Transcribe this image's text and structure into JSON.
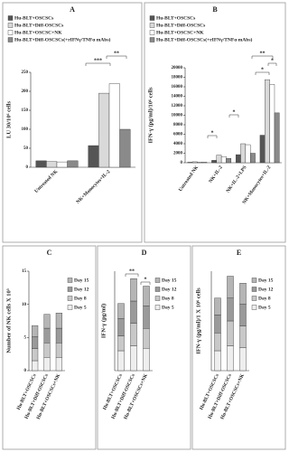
{
  "chart_data": [
    {
      "type": "bar",
      "label": "A",
      "y_label": "LU 30/10⁶ cells",
      "categories": [
        "Untreated NK",
        "NK+Monocytes+IL-2"
      ],
      "series": [
        {
          "name": "Hu-BLT+OSCSCs",
          "color": "#555555",
          "values": [
            17,
            57
          ]
        },
        {
          "name": "Hu-BLT+Diff-OSCSCs",
          "color": "#d9d9d9",
          "values": [
            15,
            195
          ]
        },
        {
          "name": "Hu-BLT+OSCSC+NK",
          "color": "#ffffff",
          "values": [
            14,
            220
          ]
        },
        {
          "name": "Hu-BLT+Diff-OSCSCs(+rIFNγ/TNFα mAbs)",
          "color": "#8a8a8a",
          "values": [
            17,
            100
          ]
        }
      ],
      "ylim": [
        0,
        250
      ],
      "yticks": [
        0,
        50,
        100,
        150,
        200,
        250
      ],
      "annotations": [
        "***",
        "**"
      ]
    },
    {
      "type": "bar",
      "label": "B",
      "y_label": "IFN-γ (pg/ml)/10⁶ cells",
      "categories": [
        "Untreated NK",
        "NK+IL-2",
        "NK+IL-2+LPS",
        "NK+Monocytes+IL-2"
      ],
      "series": [
        {
          "name": "Hu-BLT+OSCSCs",
          "color": "#555555",
          "values": [
            100,
            500,
            1700,
            5800
          ]
        },
        {
          "name": "Hu-BLT+Diff-OSCSCs",
          "color": "#d9d9d9",
          "values": [
            200,
            1600,
            4000,
            17500
          ]
        },
        {
          "name": "Hu-BLT+OSCSC+NK",
          "color": "#ffffff",
          "values": [
            150,
            1300,
            3800,
            16500
          ]
        },
        {
          "name": "Hu-BLT+Diff-OSCSCs(+rIFNγ/TNFα mAbs)",
          "color": "#8a8a8a",
          "values": [
            100,
            900,
            2000,
            10500
          ]
        }
      ],
      "ylim": [
        0,
        20000
      ],
      "yticks": [
        0,
        2000,
        4000,
        6000,
        8000,
        10000,
        12000,
        14000,
        16000,
        18000,
        20000
      ],
      "annotations": [
        "*",
        "*",
        "*",
        "**",
        "*"
      ]
    },
    {
      "type": "stacked_bar",
      "label": "C",
      "y_label": "Number of NK cells X 10³",
      "categories": [
        "Hu-BLT+OSCSCs",
        "Hu-BLT+Diff-OSCSCs",
        "Hu-BLT+OSCSCs+NK"
      ],
      "series": [
        {
          "name": "Day 5",
          "color": "#eeeeee",
          "values": [
            1.5,
            2,
            2
          ]
        },
        {
          "name": "Day 8",
          "color": "#c8c8c8",
          "values": [
            1.8,
            2.2,
            2.2
          ]
        },
        {
          "name": "Day 12",
          "color": "#9a9a9a",
          "values": [
            1.8,
            2.2,
            2.2
          ]
        },
        {
          "name": "Day 15",
          "color": "#b5b5b5",
          "values": [
            1.7,
            2.1,
            2.3
          ]
        }
      ],
      "ylim": [
        0,
        15
      ],
      "yticks": [
        0,
        5,
        10,
        15
      ],
      "annotations": []
    },
    {
      "type": "stacked_bar",
      "label": "D",
      "y_label": "IFN-γ (pg/ml)",
      "categories": [
        "Hu-BLT+OSCSCs",
        "Hu-BLT+Diff-OSCSCs",
        "Hu-BLT+OSCSCs+NK"
      ],
      "series": [
        {
          "name": "Day 5",
          "color": "#eeeeee",
          "values": [
            4,
            5,
            4.5
          ]
        },
        {
          "name": "Day 8",
          "color": "#c8c8c8",
          "values": [
            3,
            4.5,
            4
          ]
        },
        {
          "name": "Day 12",
          "color": "#9a9a9a",
          "values": [
            3.5,
            4.5,
            4.5
          ]
        },
        {
          "name": "Day 15",
          "color": "#b5b5b5",
          "values": [
            3,
            4.5,
            4
          ]
        }
      ],
      "ylim": [
        0,
        20
      ],
      "annotations": [
        "**",
        "*"
      ]
    },
    {
      "type": "stacked_bar",
      "label": "E",
      "y_label": "IFN-γ (pg/ml)/1 X 10⁶ cells",
      "categories": [
        "Hu-BLT+OSCSCs",
        "Hu-BLT+Diff-OSCSCs",
        "Hu-BLT+OSCSCs+NK"
      ],
      "series": [
        {
          "name": "Day 5",
          "color": "#eeeeee",
          "values": [
            2,
            2.5,
            2.3
          ]
        },
        {
          "name": "Day 8",
          "color": "#c8c8c8",
          "values": [
            1.8,
            2.5,
            2.2
          ]
        },
        {
          "name": "Day 12",
          "color": "#9a9a9a",
          "values": [
            1.8,
            2.3,
            2.2
          ]
        },
        {
          "name": "Day 15",
          "color": "#b5b5b5",
          "values": [
            1.7,
            2.2,
            2.1
          ]
        }
      ],
      "ylim": [
        0,
        10
      ],
      "annotations": []
    }
  ]
}
